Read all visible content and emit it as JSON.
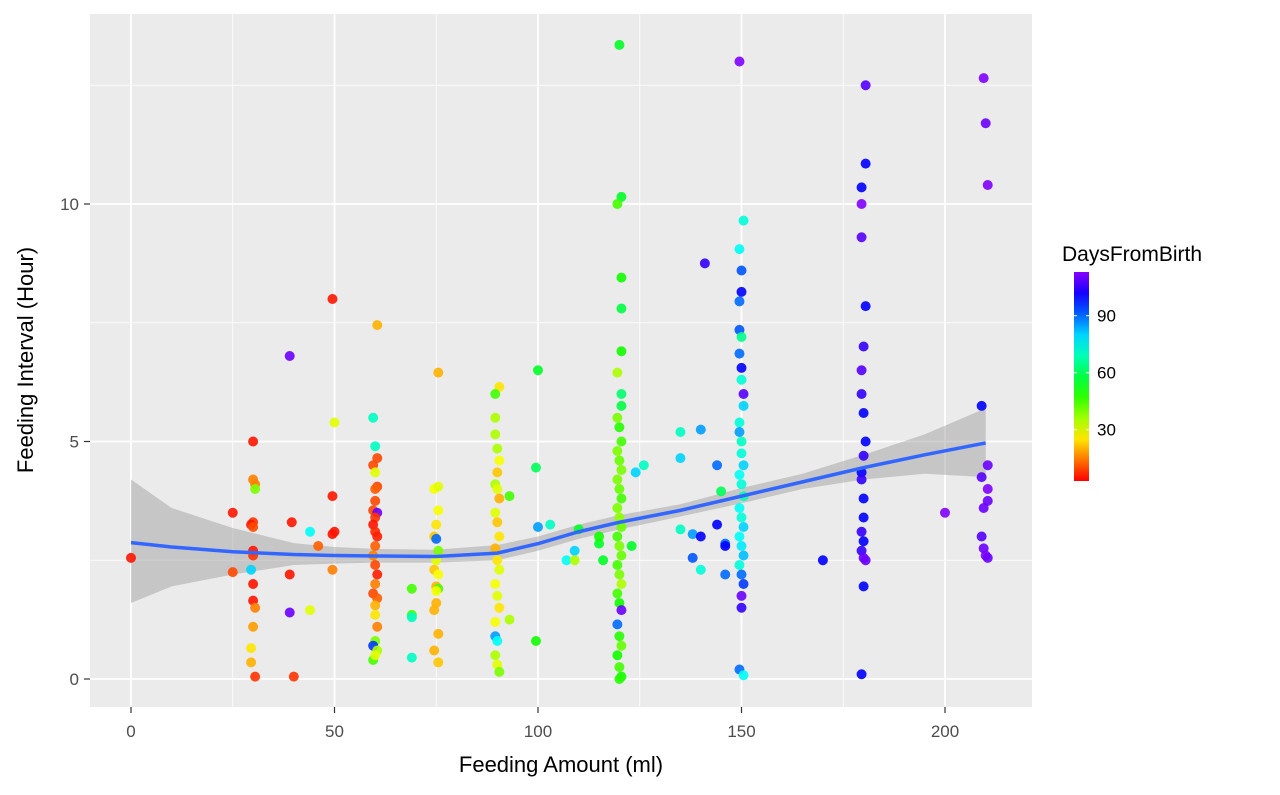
{
  "chart_data": {
    "type": "scatter",
    "title": "",
    "xlabel": "Feeding Amount (ml)",
    "ylabel": "Feeding Interval (Hour)",
    "xlim": [
      -10,
      222
    ],
    "ylim": [
      -0.6,
      14.0
    ],
    "x_ticks": [
      0,
      50,
      100,
      150,
      200
    ],
    "y_ticks": [
      0,
      5,
      10
    ],
    "grid": true,
    "legend": {
      "title": "DaysFromBirth",
      "placement": "right",
      "type": "colorbar",
      "range": [
        3,
        113
      ],
      "ticks": [
        30,
        60,
        90
      ],
      "colors": [
        "#ff0000",
        "#ffaa00",
        "#aaff00",
        "#00ff66",
        "#00ffff",
        "#4488ff",
        "#7f00ff"
      ]
    },
    "point_fields": [
      "x",
      "y",
      "DaysFromBirth"
    ],
    "points": [
      [
        0,
        2.55,
        5
      ],
      [
        25,
        3.5,
        5
      ],
      [
        25,
        2.25,
        10
      ],
      [
        30,
        5.0,
        5
      ],
      [
        30,
        4.2,
        15
      ],
      [
        30.5,
        4.1,
        15
      ],
      [
        30.5,
        4.0,
        40
      ],
      [
        30,
        3.3,
        8
      ],
      [
        29.5,
        3.25,
        5
      ],
      [
        30,
        3.2,
        10
      ],
      [
        30,
        2.7,
        5
      ],
      [
        30,
        2.6,
        8
      ],
      [
        29.5,
        2.3,
        80
      ],
      [
        30,
        2.0,
        5
      ],
      [
        30,
        1.65,
        5
      ],
      [
        30.5,
        1.5,
        15
      ],
      [
        30,
        1.1,
        18
      ],
      [
        29.5,
        0.65,
        25
      ],
      [
        29.5,
        0.35,
        20
      ],
      [
        30.5,
        0.05,
        8
      ],
      [
        39,
        6.8,
        110
      ],
      [
        39,
        1.4,
        110
      ],
      [
        39.5,
        3.3,
        5
      ],
      [
        39,
        2.2,
        5
      ],
      [
        40,
        0.05,
        8
      ],
      [
        44,
        3.1,
        75
      ],
      [
        44,
        1.45,
        30
      ],
      [
        46,
        2.8,
        12
      ],
      [
        49.5,
        8.0,
        5
      ],
      [
        50,
        5.4,
        30
      ],
      [
        49.5,
        3.85,
        5
      ],
      [
        50,
        3.1,
        5
      ],
      [
        49.5,
        3.05,
        5
      ],
      [
        49.5,
        2.3,
        15
      ],
      [
        60.5,
        7.45,
        20
      ],
      [
        59.5,
        5.5,
        70
      ],
      [
        60,
        4.9,
        70
      ],
      [
        60.5,
        4.65,
        10
      ],
      [
        59.5,
        4.5,
        10
      ],
      [
        60,
        4.35,
        30
      ],
      [
        60.5,
        4.05,
        10
      ],
      [
        60,
        4.0,
        12
      ],
      [
        60,
        3.75,
        10
      ],
      [
        59.5,
        3.55,
        10
      ],
      [
        60.5,
        3.5,
        110
      ],
      [
        60,
        3.4,
        8
      ],
      [
        59.5,
        3.25,
        5
      ],
      [
        60,
        3.1,
        7
      ],
      [
        60.5,
        3.0,
        6
      ],
      [
        60,
        2.8,
        12
      ],
      [
        59.5,
        2.6,
        15
      ],
      [
        60,
        2.4,
        10
      ],
      [
        60.5,
        2.2,
        6
      ],
      [
        60,
        2.0,
        15
      ],
      [
        59.5,
        1.8,
        10
      ],
      [
        60.5,
        1.7,
        12
      ],
      [
        60,
        1.55,
        20
      ],
      [
        60,
        1.35,
        25
      ],
      [
        60.5,
        1.1,
        15
      ],
      [
        60,
        0.8,
        40
      ],
      [
        59.5,
        0.7,
        95
      ],
      [
        60.5,
        0.6,
        35
      ],
      [
        59.5,
        0.4,
        45
      ],
      [
        60,
        0.5,
        30
      ],
      [
        69,
        1.9,
        45
      ],
      [
        69,
        1.35,
        45
      ],
      [
        69,
        1.3,
        70
      ],
      [
        69,
        0.45,
        70
      ],
      [
        75.5,
        6.45,
        20
      ],
      [
        74.5,
        4.0,
        28
      ],
      [
        75.5,
        4.05,
        30
      ],
      [
        75.5,
        3.55,
        28
      ],
      [
        75,
        3.25,
        25
      ],
      [
        74.5,
        3.0,
        22
      ],
      [
        75,
        2.95,
        90
      ],
      [
        75.5,
        2.7,
        40
      ],
      [
        75,
        2.5,
        30
      ],
      [
        74.5,
        2.3,
        22
      ],
      [
        75.5,
        2.2,
        28
      ],
      [
        75,
        1.95,
        20
      ],
      [
        75.5,
        1.9,
        45
      ],
      [
        75,
        1.85,
        28
      ],
      [
        75,
        1.6,
        20
      ],
      [
        74.5,
        1.45,
        20
      ],
      [
        75.5,
        0.95,
        20
      ],
      [
        74.5,
        0.6,
        20
      ],
      [
        75.5,
        0.35,
        22
      ],
      [
        90.5,
        6.15,
        25
      ],
      [
        89.5,
        6.0,
        45
      ],
      [
        89.5,
        5.5,
        35
      ],
      [
        89.5,
        5.15,
        35
      ],
      [
        90,
        4.85,
        35
      ],
      [
        90.5,
        4.6,
        28
      ],
      [
        90,
        4.35,
        22
      ],
      [
        89.5,
        4.1,
        35
      ],
      [
        90,
        4.0,
        30
      ],
      [
        90.5,
        3.8,
        20
      ],
      [
        89.5,
        3.5,
        30
      ],
      [
        90,
        3.3,
        22
      ],
      [
        90.5,
        3.0,
        25
      ],
      [
        89.5,
        2.75,
        20
      ],
      [
        90,
        2.5,
        25
      ],
      [
        90.5,
        2.3,
        30
      ],
      [
        89.5,
        2.0,
        28
      ],
      [
        90,
        1.75,
        30
      ],
      [
        90.5,
        1.5,
        25
      ],
      [
        89.5,
        1.2,
        28
      ],
      [
        89.5,
        0.9,
        85
      ],
      [
        90,
        0.8,
        75
      ],
      [
        89.5,
        0.5,
        35
      ],
      [
        90,
        0.3,
        30
      ],
      [
        90.5,
        0.15,
        40
      ],
      [
        93,
        3.85,
        45
      ],
      [
        93,
        1.25,
        35
      ],
      [
        100,
        6.5,
        55
      ],
      [
        99.5,
        4.45,
        60
      ],
      [
        100,
        3.2,
        85
      ],
      [
        99.5,
        0.8,
        50
      ],
      [
        103,
        3.25,
        70
      ],
      [
        107,
        2.5,
        75
      ],
      [
        109,
        2.7,
        80
      ],
      [
        109,
        2.5,
        35
      ],
      [
        110,
        3.15,
        55
      ],
      [
        120,
        13.35,
        55
      ],
      [
        120.5,
        10.15,
        55
      ],
      [
        119.5,
        10.0,
        45
      ],
      [
        120.5,
        8.45,
        50
      ],
      [
        120.5,
        7.8,
        58
      ],
      [
        120.5,
        6.9,
        50
      ],
      [
        119.5,
        6.45,
        35
      ],
      [
        120.5,
        6.0,
        62
      ],
      [
        120.5,
        5.75,
        58
      ],
      [
        119.5,
        5.5,
        40
      ],
      [
        120,
        5.3,
        48
      ],
      [
        120.5,
        5.0,
        45
      ],
      [
        119.5,
        4.8,
        40
      ],
      [
        120,
        4.6,
        42
      ],
      [
        120.5,
        4.4,
        40
      ],
      [
        119.5,
        4.2,
        40
      ],
      [
        120,
        4.0,
        42
      ],
      [
        120.5,
        3.8,
        45
      ],
      [
        119.5,
        3.6,
        40
      ],
      [
        120,
        3.4,
        38
      ],
      [
        120.5,
        3.2,
        42
      ],
      [
        119.5,
        3.0,
        45
      ],
      [
        120,
        2.8,
        40
      ],
      [
        120.5,
        2.6,
        42
      ],
      [
        119.5,
        2.4,
        45
      ],
      [
        120,
        2.2,
        40
      ],
      [
        120.5,
        2.0,
        35
      ],
      [
        119.5,
        1.8,
        45
      ],
      [
        120,
        1.6,
        50
      ],
      [
        120.5,
        1.45,
        110
      ],
      [
        119.5,
        1.15,
        90
      ],
      [
        120,
        0.9,
        48
      ],
      [
        120.5,
        0.7,
        42
      ],
      [
        119.5,
        0.5,
        50
      ],
      [
        120,
        0.25,
        45
      ],
      [
        120.5,
        0.05,
        50
      ],
      [
        120,
        0.0,
        48
      ],
      [
        115,
        2.85,
        55
      ],
      [
        115,
        3.0,
        50
      ],
      [
        116,
        2.5,
        55
      ],
      [
        123,
        2.8,
        55
      ],
      [
        124,
        4.35,
        80
      ],
      [
        126,
        4.5,
        70
      ],
      [
        135,
        5.2,
        70
      ],
      [
        135,
        4.65,
        80
      ],
      [
        135,
        3.15,
        70
      ],
      [
        138,
        3.05,
        85
      ],
      [
        138,
        2.55,
        92
      ],
      [
        140,
        5.25,
        85
      ],
      [
        140,
        3.0,
        100
      ],
      [
        141,
        8.75,
        105
      ],
      [
        140,
        2.3,
        72
      ],
      [
        144,
        4.5,
        90
      ],
      [
        145,
        3.95,
        60
      ],
      [
        144,
        3.25,
        100
      ],
      [
        146,
        2.85,
        90
      ],
      [
        146,
        2.8,
        100
      ],
      [
        146,
        2.2,
        90
      ],
      [
        149.5,
        13.0,
        112
      ],
      [
        150.5,
        9.65,
        72
      ],
      [
        149.5,
        9.05,
        75
      ],
      [
        150,
        8.6,
        92
      ],
      [
        150,
        8.15,
        100
      ],
      [
        149.5,
        7.95,
        90
      ],
      [
        149.5,
        7.35,
        92
      ],
      [
        150,
        7.2,
        65
      ],
      [
        149.5,
        6.85,
        90
      ],
      [
        150,
        6.55,
        100
      ],
      [
        150,
        6.3,
        72
      ],
      [
        150.5,
        6.0,
        108
      ],
      [
        150.5,
        5.75,
        80
      ],
      [
        149.5,
        5.4,
        72
      ],
      [
        149.5,
        5.2,
        85
      ],
      [
        150,
        5.0,
        70
      ],
      [
        150,
        4.75,
        72
      ],
      [
        150.5,
        4.5,
        80
      ],
      [
        149.5,
        4.3,
        75
      ],
      [
        150,
        4.1,
        72
      ],
      [
        150.5,
        3.85,
        68
      ],
      [
        149.5,
        3.6,
        75
      ],
      [
        150,
        3.4,
        72
      ],
      [
        150.5,
        3.2,
        80
      ],
      [
        149.5,
        3.0,
        75
      ],
      [
        150,
        2.8,
        78
      ],
      [
        150.5,
        2.6,
        82
      ],
      [
        149.5,
        2.4,
        72
      ],
      [
        150,
        2.2,
        90
      ],
      [
        150.5,
        2.0,
        95
      ],
      [
        150,
        1.75,
        110
      ],
      [
        150,
        1.5,
        105
      ],
      [
        149.5,
        0.2,
        90
      ],
      [
        150.5,
        0.08,
        75
      ],
      [
        170,
        2.5,
        100
      ],
      [
        180.5,
        12.5,
        108
      ],
      [
        180.5,
        10.85,
        100
      ],
      [
        179.5,
        10.35,
        100
      ],
      [
        179.5,
        10.0,
        112
      ],
      [
        179.5,
        9.3,
        108
      ],
      [
        180.5,
        7.85,
        100
      ],
      [
        180,
        7.0,
        105
      ],
      [
        179.5,
        6.5,
        108
      ],
      [
        179.5,
        6.0,
        105
      ],
      [
        180,
        5.6,
        100
      ],
      [
        180.5,
        5.0,
        100
      ],
      [
        180,
        4.7,
        105
      ],
      [
        179.5,
        4.35,
        100
      ],
      [
        179.5,
        4.2,
        105
      ],
      [
        180,
        3.8,
        100
      ],
      [
        180,
        3.4,
        100
      ],
      [
        179.5,
        3.1,
        105
      ],
      [
        180,
        2.9,
        100
      ],
      [
        179.5,
        2.7,
        105
      ],
      [
        180,
        2.55,
        110
      ],
      [
        180.5,
        2.5,
        110
      ],
      [
        180,
        1.95,
        100
      ],
      [
        179.5,
        0.1,
        100
      ],
      [
        200,
        3.5,
        112
      ],
      [
        209.5,
        12.65,
        112
      ],
      [
        210,
        11.7,
        110
      ],
      [
        210.5,
        10.4,
        112
      ],
      [
        209,
        5.75,
        100
      ],
      [
        210.5,
        4.5,
        110
      ],
      [
        209,
        4.25,
        108
      ],
      [
        210.5,
        4.0,
        112
      ],
      [
        210.5,
        3.75,
        110
      ],
      [
        209.5,
        3.6,
        110
      ],
      [
        209,
        3.0,
        108
      ],
      [
        209.5,
        2.75,
        110
      ],
      [
        210,
        2.6,
        112
      ],
      [
        210.5,
        2.55,
        110
      ]
    ],
    "smooth": {
      "method": "loess",
      "color": "#3366ff",
      "x": [
        0,
        10,
        25,
        40,
        50,
        60,
        75,
        90,
        100,
        110,
        120,
        135,
        150,
        165,
        180,
        195,
        210
      ],
      "y": [
        2.87,
        2.78,
        2.68,
        2.62,
        2.6,
        2.59,
        2.58,
        2.65,
        2.85,
        3.1,
        3.3,
        3.55,
        3.85,
        4.15,
        4.45,
        4.72,
        4.97
      ],
      "lower": [
        1.6,
        1.95,
        2.2,
        2.4,
        2.43,
        2.45,
        2.45,
        2.5,
        2.7,
        2.95,
        3.15,
        3.42,
        3.7,
        4.0,
        4.2,
        4.32,
        4.25
      ],
      "upper": [
        4.2,
        3.6,
        3.18,
        2.86,
        2.78,
        2.74,
        2.72,
        2.82,
        3.0,
        3.25,
        3.45,
        3.68,
        4.02,
        4.32,
        4.72,
        5.15,
        5.7
      ]
    }
  }
}
